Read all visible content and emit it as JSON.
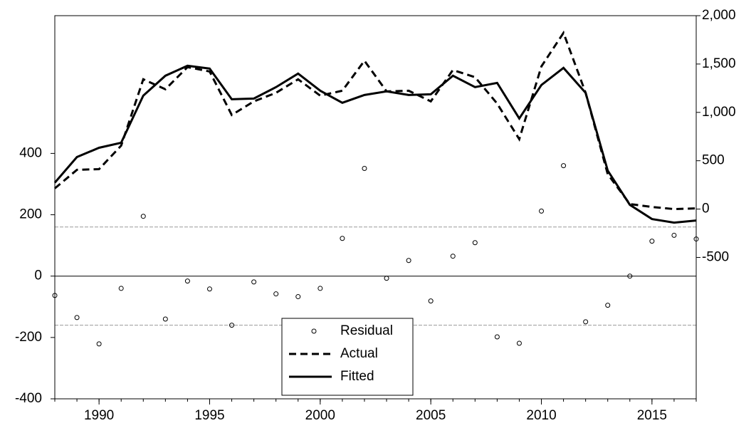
{
  "chart_data": {
    "type": "residual-actual-fitted",
    "x": [
      1988,
      1989,
      1990,
      1991,
      1992,
      1993,
      1994,
      1995,
      1996,
      1997,
      1998,
      1999,
      2000,
      2001,
      2002,
      2003,
      2004,
      2005,
      2006,
      2007,
      2008,
      2009,
      2010,
      2011,
      2012,
      2013,
      2014,
      2015,
      2016,
      2017
    ],
    "series": [
      {
        "name": "Residual",
        "color": "#000000",
        "style": "circle",
        "axis": "y",
        "values": [
          -63,
          -135,
          -221,
          -40,
          195,
          -140,
          -16,
          -42,
          -160,
          -19,
          -58,
          -67,
          -40,
          123,
          351,
          -7,
          51,
          -81,
          65,
          109,
          -198,
          -219,
          212,
          360,
          -149,
          -95,
          0,
          114,
          133,
          121
        ]
      },
      {
        "name": "Actual",
        "color": "#000000",
        "style": "dashed",
        "axis": "y2",
        "values": [
          214,
          406,
          413,
          656,
          1342,
          1239,
          1468,
          1423,
          973,
          1114,
          1202,
          1342,
          1173,
          1224,
          1534,
          1217,
          1224,
          1114,
          1438,
          1364,
          1091,
          723,
          1475,
          1822,
          1202,
          361,
          52,
          22,
          0,
          7
        ]
      },
      {
        "name": "Fitted",
        "color": "#000000",
        "style": "solid",
        "axis": "y2",
        "values": [
          273,
          538,
          634,
          686,
          1173,
          1379,
          1482,
          1453,
          1136,
          1143,
          1261,
          1401,
          1224,
          1099,
          1180,
          1217,
          1180,
          1187,
          1379,
          1261,
          1305,
          937,
          1283,
          1460,
          1202,
          398,
          44,
          -103,
          -140,
          -118
        ]
      }
    ],
    "xlim": [
      1988,
      2017
    ],
    "xticks": [
      1990,
      1995,
      2000,
      2005,
      2010,
      2015
    ],
    "ylim": [
      -400,
      849
    ],
    "yticks": [
      -400,
      -200,
      0,
      200,
      400
    ],
    "y2lim": [
      -1962,
      2000
    ],
    "y2ticks": [
      {
        "value": -500,
        "label": "-500"
      },
      0,
      500,
      {
        "value": 1000,
        "label": "1,000"
      },
      {
        "value": 1500,
        "label": "1,500"
      },
      {
        "value": 2000,
        "label": "2,000"
      }
    ],
    "reference_lines": [
      -160,
      160
    ],
    "legend": "bottom-center"
  }
}
